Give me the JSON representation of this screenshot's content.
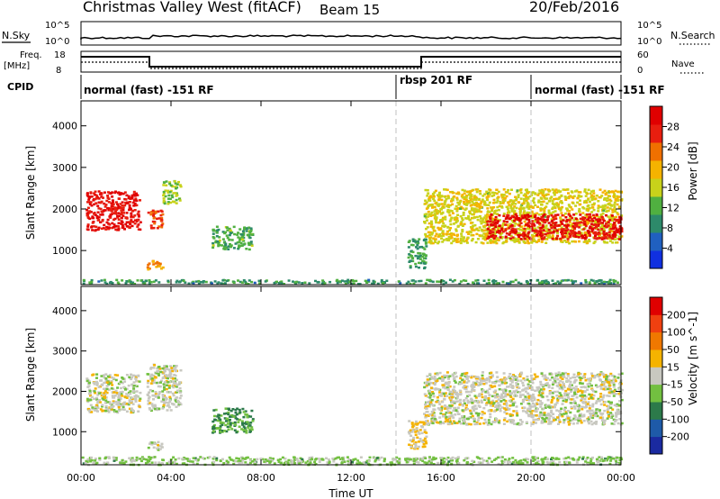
{
  "header": {
    "station": "Christmas Valley West (fitACF)",
    "beam": "Beam 15",
    "date": "20/Feb/2016"
  },
  "top_panels": {
    "nsky_label": "N.Sky",
    "nsearch_label": "N.Search",
    "noise_ticks": [
      "10^5",
      "10^0"
    ],
    "noise_ticks_right": [
      "10^5",
      "10^0"
    ],
    "freq_label": "Freq.",
    "freq_unit": "[MHz]",
    "freq_ticks": [
      "18",
      "8"
    ],
    "nave_label": "Nave",
    "nave_ticks": [
      "60",
      "0"
    ],
    "cpid_label": "CPID",
    "cpid_segments": [
      {
        "label": "normal (fast) -151 RF",
        "start_h": 0,
        "end_h": 14
      },
      {
        "label": "rbsp 201 RF",
        "start_h": 14,
        "end_h": 20
      },
      {
        "label": "normal (fast) -151 RF",
        "start_h": 20,
        "end_h": 24
      }
    ]
  },
  "chart_data": [
    {
      "type": "heatmap",
      "title": "",
      "xlabel": "Time UT",
      "ylabel": "Slant Range [km]",
      "x_ticks": [
        "00:00",
        "04:00",
        "08:00",
        "12:00",
        "16:00",
        "20:00",
        "00:00"
      ],
      "y_ticks": [
        "1000",
        "2000",
        "3000",
        "4000"
      ],
      "xlim": [
        0,
        24
      ],
      "ylim": [
        180,
        4600
      ],
      "colorbar": {
        "label": "Power [dB]",
        "ticks": [
          "4",
          "8",
          "12",
          "16",
          "20",
          "24",
          "28"
        ],
        "range": [
          0,
          30
        ],
        "colors": [
          "#1030e0",
          "#2060c0",
          "#2d8a6a",
          "#50b040",
          "#c8d21a",
          "#f5b300",
          "#f07000",
          "#e81e0f",
          "#e00000"
        ]
      },
      "echo_regions": [
        {
          "t0": 0.2,
          "t1": 2.6,
          "r0": 1500,
          "r1": 2450,
          "value": 27
        },
        {
          "t0": 2.9,
          "t1": 3.6,
          "r0": 1550,
          "r1": 2000,
          "value": 24
        },
        {
          "t0": 3.6,
          "t1": 4.4,
          "r0": 2150,
          "r1": 2700,
          "value": 14
        },
        {
          "t0": 5.8,
          "t1": 7.6,
          "r0": 1050,
          "r1": 1600,
          "value": 11
        },
        {
          "t0": 2.9,
          "t1": 3.6,
          "r0": 560,
          "r1": 780,
          "value": 20
        },
        {
          "t0": 0.0,
          "t1": 24.0,
          "r0": 220,
          "r1": 320,
          "value": 9
        },
        {
          "t0": 14.5,
          "t1": 15.3,
          "r0": 600,
          "r1": 1300,
          "value": 10
        },
        {
          "t0": 15.2,
          "t1": 24.0,
          "r0": 1200,
          "r1": 2500,
          "value": 16
        },
        {
          "t0": 18.0,
          "t1": 24.0,
          "r0": 1300,
          "r1": 1900,
          "value": 27
        }
      ]
    },
    {
      "type": "heatmap",
      "title": "",
      "xlabel": "Time UT",
      "ylabel": "Slant Range [km]",
      "x_ticks": [
        "00:00",
        "04:00",
        "08:00",
        "12:00",
        "16:00",
        "20:00",
        "00:00"
      ],
      "y_ticks": [
        "1000",
        "2000",
        "3000",
        "4000"
      ],
      "xlim": [
        0,
        24
      ],
      "ylim": [
        180,
        4600
      ],
      "colorbar": {
        "label": "Velocity [m s^-1]",
        "ticks": [
          "200",
          "100",
          "50",
          "15",
          "-15",
          "-50",
          "-100",
          "-200"
        ],
        "range": [
          -250,
          250
        ],
        "colors": [
          "#1a2aa0",
          "#1e5aa8",
          "#2c7a4a",
          "#72c040",
          "#c8c8c0",
          "#f5b300",
          "#f07800",
          "#f04010",
          "#e00000"
        ]
      },
      "echo_regions": [
        {
          "t0": 0.2,
          "t1": 2.6,
          "r0": 1500,
          "r1": 2450,
          "value": 0
        },
        {
          "t0": 2.9,
          "t1": 4.4,
          "r0": 1550,
          "r1": 2700,
          "value": 0
        },
        {
          "t0": 5.8,
          "t1": 7.6,
          "r0": 1000,
          "r1": 1600,
          "value": -90
        },
        {
          "t0": 2.9,
          "t1": 3.6,
          "r0": 560,
          "r1": 780,
          "value": 0
        },
        {
          "t0": 0.0,
          "t1": 24.0,
          "r0": 200,
          "r1": 400,
          "value": -40
        },
        {
          "t0": 14.5,
          "t1": 15.3,
          "r0": 600,
          "r1": 1300,
          "value": 30
        },
        {
          "t0": 15.2,
          "t1": 24.0,
          "r0": 1200,
          "r1": 2500,
          "value": 0
        }
      ]
    }
  ]
}
